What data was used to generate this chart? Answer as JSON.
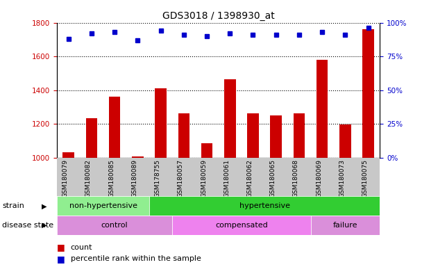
{
  "title": "GDS3018 / 1398930_at",
  "samples": [
    "GSM180079",
    "GSM180082",
    "GSM180085",
    "GSM180089",
    "GSM178755",
    "GSM180057",
    "GSM180059",
    "GSM180061",
    "GSM180062",
    "GSM180065",
    "GSM180068",
    "GSM180069",
    "GSM180073",
    "GSM180075"
  ],
  "counts": [
    1030,
    1235,
    1360,
    1005,
    1410,
    1262,
    1085,
    1465,
    1262,
    1250,
    1262,
    1580,
    1195,
    1760
  ],
  "percentile_ranks": [
    88,
    92,
    93,
    87,
    94,
    91,
    90,
    92,
    91,
    91,
    91,
    93,
    91,
    96
  ],
  "ylim_left": [
    1000,
    1800
  ],
  "ylim_right": [
    0,
    100
  ],
  "yticks_left": [
    1000,
    1200,
    1400,
    1600,
    1800
  ],
  "yticks_right": [
    0,
    25,
    50,
    75,
    100
  ],
  "bar_color": "#cc0000",
  "dot_color": "#0000cc",
  "strain_groups": [
    {
      "label": "non-hypertensive",
      "start": 0,
      "end": 4,
      "color": "#90ee90"
    },
    {
      "label": "hypertensive",
      "start": 4,
      "end": 14,
      "color": "#32cd32"
    }
  ],
  "disease_groups": [
    {
      "label": "control",
      "start": 0,
      "end": 5,
      "color": "#da8fda"
    },
    {
      "label": "compensated",
      "start": 5,
      "end": 11,
      "color": "#ee82ee"
    },
    {
      "label": "failure",
      "start": 11,
      "end": 14,
      "color": "#da8fda"
    }
  ],
  "legend_bar_label": "count",
  "legend_dot_label": "percentile rank within the sample",
  "strain_label": "strain",
  "disease_label": "disease state",
  "grid_color": "#000000",
  "tick_color_left": "#cc0000",
  "tick_color_right": "#0000cc",
  "bar_width": 0.5,
  "bg_color": "#c8c8c8"
}
